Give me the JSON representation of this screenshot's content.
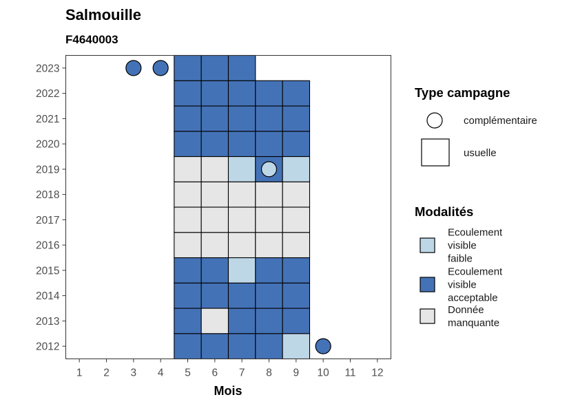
{
  "title": "Salmouille",
  "subtitle": "F4640003",
  "chart_data": {
    "type": "heatmap",
    "title": "Salmouille",
    "subtitle": "F4640003",
    "xlabel": "Mois",
    "ylabel": "",
    "x_ticks": [
      1,
      2,
      3,
      4,
      5,
      6,
      7,
      8,
      9,
      10,
      11,
      12
    ],
    "y_ticks": [
      2012,
      2013,
      2014,
      2015,
      2016,
      2017,
      2018,
      2019,
      2020,
      2021,
      2022,
      2023
    ],
    "xlim": [
      0.5,
      12.5
    ],
    "ylim": [
      2011.5,
      2023.5
    ],
    "modalities": [
      {
        "key": "faible",
        "label": "Ecoulement visible faible",
        "label_lines": [
          "Ecoulement",
          "visible",
          "faible"
        ],
        "color": "#bdd7e7"
      },
      {
        "key": "acceptable",
        "label": "Ecoulement visible acceptable",
        "label_lines": [
          "Ecoulement",
          "visible",
          "acceptable"
        ],
        "color": "#4472b6"
      },
      {
        "key": "manquante",
        "label": "Donnée manquante",
        "label_lines": [
          "Donnée",
          "manquante"
        ],
        "color": "#e6e6e6"
      }
    ],
    "campaign_types": [
      {
        "key": "complementaire",
        "label": "complémentaire",
        "shape": "circle"
      },
      {
        "key": "usuelle",
        "label": "usuelle",
        "shape": "square"
      }
    ],
    "legend_titles": {
      "type_campagne": "Type campagne",
      "modalites": "Modalités"
    },
    "legend_position": "right",
    "grid": false,
    "observations": [
      {
        "year": 2012,
        "month": 5,
        "type": "usuelle",
        "modalite": "acceptable"
      },
      {
        "year": 2012,
        "month": 6,
        "type": "usuelle",
        "modalite": "acceptable"
      },
      {
        "year": 2012,
        "month": 7,
        "type": "usuelle",
        "modalite": "acceptable"
      },
      {
        "year": 2012,
        "month": 8,
        "type": "usuelle",
        "modalite": "acceptable"
      },
      {
        "year": 2012,
        "month": 9,
        "type": "usuelle",
        "modalite": "faible"
      },
      {
        "year": 2012,
        "month": 10,
        "type": "complementaire",
        "modalite": "acceptable"
      },
      {
        "year": 2013,
        "month": 5,
        "type": "usuelle",
        "modalite": "acceptable"
      },
      {
        "year": 2013,
        "month": 6,
        "type": "usuelle",
        "modalite": "manquante"
      },
      {
        "year": 2013,
        "month": 7,
        "type": "usuelle",
        "modalite": "acceptable"
      },
      {
        "year": 2013,
        "month": 8,
        "type": "usuelle",
        "modalite": "acceptable"
      },
      {
        "year": 2013,
        "month": 9,
        "type": "usuelle",
        "modalite": "acceptable"
      },
      {
        "year": 2014,
        "month": 5,
        "type": "usuelle",
        "modalite": "acceptable"
      },
      {
        "year": 2014,
        "month": 6,
        "type": "usuelle",
        "modalite": "acceptable"
      },
      {
        "year": 2014,
        "month": 7,
        "type": "usuelle",
        "modalite": "acceptable"
      },
      {
        "year": 2014,
        "month": 8,
        "type": "usuelle",
        "modalite": "acceptable"
      },
      {
        "year": 2014,
        "month": 9,
        "type": "usuelle",
        "modalite": "acceptable"
      },
      {
        "year": 2015,
        "month": 5,
        "type": "usuelle",
        "modalite": "acceptable"
      },
      {
        "year": 2015,
        "month": 6,
        "type": "usuelle",
        "modalite": "acceptable"
      },
      {
        "year": 2015,
        "month": 7,
        "type": "usuelle",
        "modalite": "faible"
      },
      {
        "year": 2015,
        "month": 8,
        "type": "usuelle",
        "modalite": "acceptable"
      },
      {
        "year": 2015,
        "month": 9,
        "type": "usuelle",
        "modalite": "acceptable"
      },
      {
        "year": 2016,
        "month": 5,
        "type": "usuelle",
        "modalite": "manquante"
      },
      {
        "year": 2016,
        "month": 6,
        "type": "usuelle",
        "modalite": "manquante"
      },
      {
        "year": 2016,
        "month": 7,
        "type": "usuelle",
        "modalite": "manquante"
      },
      {
        "year": 2016,
        "month": 8,
        "type": "usuelle",
        "modalite": "manquante"
      },
      {
        "year": 2016,
        "month": 9,
        "type": "usuelle",
        "modalite": "manquante"
      },
      {
        "year": 2017,
        "month": 5,
        "type": "usuelle",
        "modalite": "manquante"
      },
      {
        "year": 2017,
        "month": 6,
        "type": "usuelle",
        "modalite": "manquante"
      },
      {
        "year": 2017,
        "month": 7,
        "type": "usuelle",
        "modalite": "manquante"
      },
      {
        "year": 2017,
        "month": 8,
        "type": "usuelle",
        "modalite": "manquante"
      },
      {
        "year": 2017,
        "month": 9,
        "type": "usuelle",
        "modalite": "manquante"
      },
      {
        "year": 2018,
        "month": 5,
        "type": "usuelle",
        "modalite": "manquante"
      },
      {
        "year": 2018,
        "month": 6,
        "type": "usuelle",
        "modalite": "manquante"
      },
      {
        "year": 2018,
        "month": 7,
        "type": "usuelle",
        "modalite": "manquante"
      },
      {
        "year": 2018,
        "month": 8,
        "type": "usuelle",
        "modalite": "manquante"
      },
      {
        "year": 2018,
        "month": 9,
        "type": "usuelle",
        "modalite": "manquante"
      },
      {
        "year": 2019,
        "month": 5,
        "type": "usuelle",
        "modalite": "manquante"
      },
      {
        "year": 2019,
        "month": 6,
        "type": "usuelle",
        "modalite": "manquante"
      },
      {
        "year": 2019,
        "month": 7,
        "type": "usuelle",
        "modalite": "faible"
      },
      {
        "year": 2019,
        "month": 8,
        "type": "usuelle",
        "modalite": "acceptable"
      },
      {
        "year": 2019,
        "month": 8,
        "type": "complementaire",
        "modalite": "faible"
      },
      {
        "year": 2019,
        "month": 9,
        "type": "usuelle",
        "modalite": "faible"
      },
      {
        "year": 2020,
        "month": 5,
        "type": "usuelle",
        "modalite": "acceptable"
      },
      {
        "year": 2020,
        "month": 6,
        "type": "usuelle",
        "modalite": "acceptable"
      },
      {
        "year": 2020,
        "month": 7,
        "type": "usuelle",
        "modalite": "acceptable"
      },
      {
        "year": 2020,
        "month": 8,
        "type": "usuelle",
        "modalite": "acceptable"
      },
      {
        "year": 2020,
        "month": 9,
        "type": "usuelle",
        "modalite": "acceptable"
      },
      {
        "year": 2021,
        "month": 5,
        "type": "usuelle",
        "modalite": "acceptable"
      },
      {
        "year": 2021,
        "month": 6,
        "type": "usuelle",
        "modalite": "acceptable"
      },
      {
        "year": 2021,
        "month": 7,
        "type": "usuelle",
        "modalite": "acceptable"
      },
      {
        "year": 2021,
        "month": 8,
        "type": "usuelle",
        "modalite": "acceptable"
      },
      {
        "year": 2021,
        "month": 9,
        "type": "usuelle",
        "modalite": "acceptable"
      },
      {
        "year": 2022,
        "month": 5,
        "type": "usuelle",
        "modalite": "acceptable"
      },
      {
        "year": 2022,
        "month": 6,
        "type": "usuelle",
        "modalite": "acceptable"
      },
      {
        "year": 2022,
        "month": 7,
        "type": "usuelle",
        "modalite": "acceptable"
      },
      {
        "year": 2022,
        "month": 8,
        "type": "usuelle",
        "modalite": "acceptable"
      },
      {
        "year": 2022,
        "month": 9,
        "type": "usuelle",
        "modalite": "acceptable"
      },
      {
        "year": 2023,
        "month": 3,
        "type": "complementaire",
        "modalite": "acceptable"
      },
      {
        "year": 2023,
        "month": 4,
        "type": "complementaire",
        "modalite": "acceptable"
      },
      {
        "year": 2023,
        "month": 5,
        "type": "usuelle",
        "modalite": "acceptable"
      },
      {
        "year": 2023,
        "month": 6,
        "type": "usuelle",
        "modalite": "acceptable"
      },
      {
        "year": 2023,
        "month": 7,
        "type": "usuelle",
        "modalite": "acceptable"
      }
    ]
  }
}
